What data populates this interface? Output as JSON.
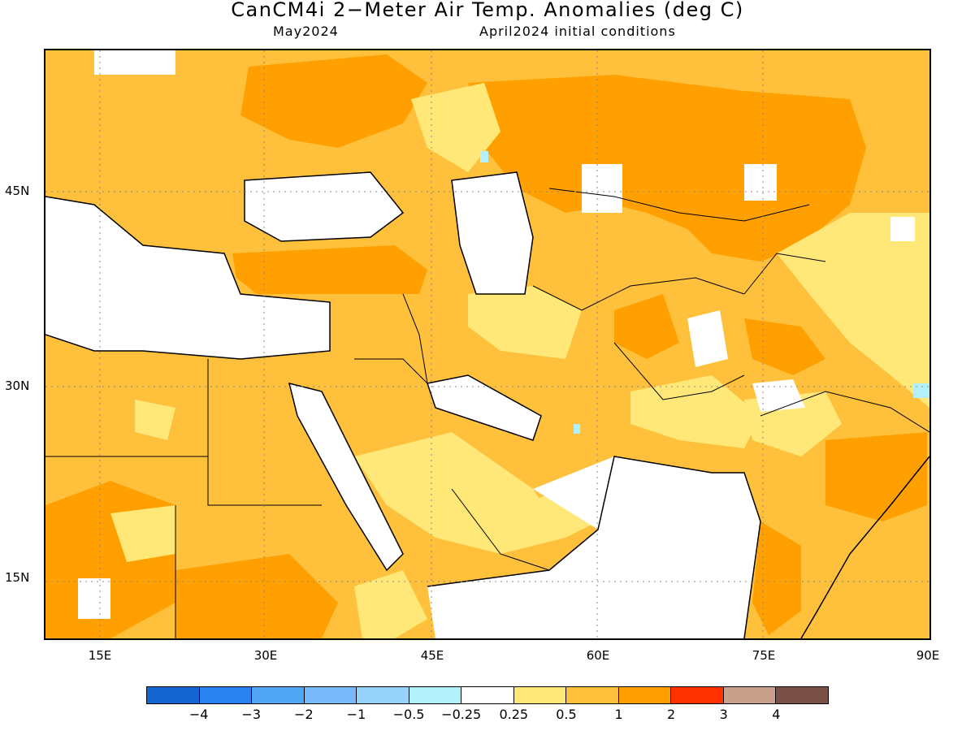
{
  "title": "CanCM4i 2−Meter Air Temp. Anomalies (deg C)",
  "subtitle_left": "May2024",
  "subtitle_right": "April2024 initial conditions",
  "lat_labels": [
    "45N",
    "30N",
    "15N"
  ],
  "lon_labels": [
    "15E",
    "30E",
    "45E",
    "60E",
    "75E",
    "90E"
  ],
  "colorbar": {
    "colors": [
      "#1464d2",
      "#2882f0",
      "#50a5f5",
      "#78b9fa",
      "#96d2fa",
      "#b4f0fa",
      "#ffffff",
      "#ffe878",
      "#ffc03c",
      "#ffa000",
      "#ff3200",
      "#c8a08c",
      "#785046"
    ],
    "labels": [
      "−4",
      "−3",
      "−2",
      "−1",
      "−0.5",
      "−0.25",
      "0.25",
      "0.5",
      "1",
      "2",
      "3",
      "4"
    ]
  },
  "region_colors": {
    "light_yellow": "#ffe878",
    "light_orange": "#ffc03c",
    "orange": "#ffa000",
    "light_blue": "#b4f0fa",
    "white": "#ffffff"
  }
}
